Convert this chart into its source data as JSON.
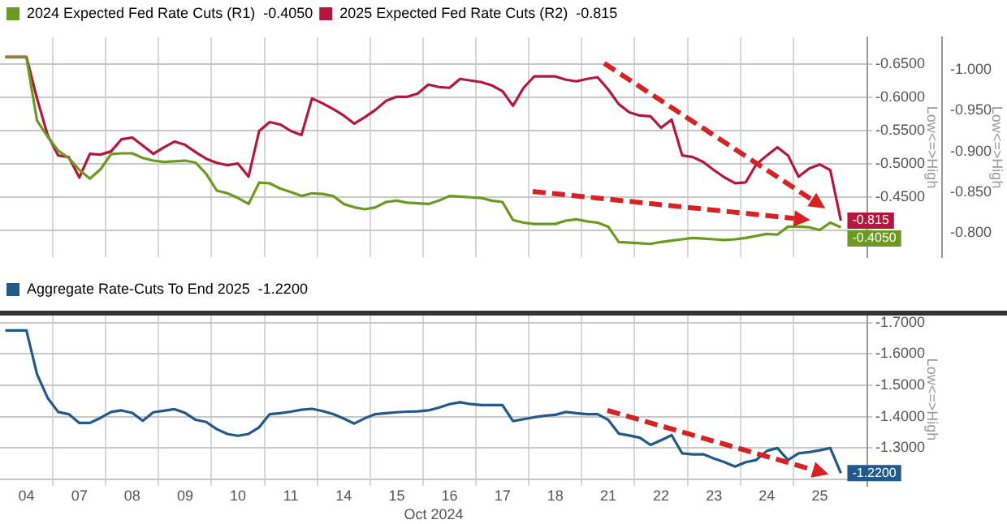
{
  "chart_data": [
    {
      "type": "line",
      "categories": [
        null,
        null,
        null,
        null,
        null,
        null,
        null,
        null,
        null,
        null,
        null,
        null,
        null,
        null,
        null,
        null,
        null,
        null,
        null,
        null,
        null,
        null,
        null,
        null,
        null,
        null,
        null,
        null,
        null,
        null,
        null,
        null,
        null,
        null,
        null,
        null,
        null,
        null,
        null,
        null,
        null,
        null,
        null,
        null,
        null,
        null,
        null,
        null,
        null,
        null,
        null,
        null,
        null,
        null,
        null,
        null,
        null,
        null,
        null,
        null,
        null,
        null,
        null,
        null,
        null,
        null,
        null,
        null,
        null,
        null,
        null,
        null,
        null,
        null,
        null,
        null,
        null,
        null,
        null,
        null,
        null,
        null
      ],
      "ylim": [
        -0.36,
        -0.69
      ],
      "yticks": [
        {
          "value": -0.65,
          "label": "-0.6500"
        },
        {
          "value": -0.6,
          "label": "-0.6000"
        },
        {
          "value": -0.55,
          "label": "-0.5500"
        },
        {
          "value": -0.5,
          "label": "-0.5000"
        },
        {
          "value": -0.45,
          "label": "-0.4500"
        },
        {
          "value": -0.4,
          "label": null
        }
      ],
      "y2lim": [
        -0.77,
        -1.04
      ],
      "y2ticks": [
        {
          "value": -1.0,
          "label": "-1.000"
        },
        {
          "value": -0.95,
          "label": "-0.950"
        },
        {
          "value": -0.9,
          "label": "-0.900"
        },
        {
          "value": -0.85,
          "label": "-0.850"
        },
        {
          "value": -0.8,
          "label": "-0.800"
        }
      ],
      "ylabel": "Low<=>High",
      "y2label": "Low<=>High",
      "legend": "top left",
      "grid": true,
      "tick_labels": "y",
      "marker": "none",
      "series": [
        {
          "name": "2024 Expected Fed Rate Cuts (R1)  -0.4050",
          "color": "#6a9a1f",
          "values": [
            -0.66,
            -0.66,
            -0.66,
            -0.565,
            -0.541,
            -0.52,
            -0.509,
            -0.491,
            -0.478,
            -0.492,
            -0.515,
            -0.516,
            -0.516,
            -0.509,
            -0.505,
            -0.503,
            -0.504,
            -0.505,
            -0.502,
            -0.485,
            -0.46,
            -0.456,
            -0.449,
            -0.44,
            -0.472,
            -0.471,
            -0.463,
            -0.458,
            -0.452,
            -0.456,
            -0.455,
            -0.452,
            -0.44,
            -0.435,
            -0.432,
            -0.435,
            -0.443,
            -0.445,
            -0.442,
            -0.441,
            -0.44,
            -0.445,
            -0.452,
            -0.451,
            -0.45,
            -0.449,
            -0.445,
            -0.443,
            -0.416,
            -0.412,
            -0.41,
            -0.41,
            -0.41,
            -0.415,
            -0.417,
            -0.414,
            -0.412,
            -0.406,
            -0.383,
            -0.382,
            -0.381,
            -0.38,
            -0.383,
            -0.385,
            -0.387,
            -0.389,
            -0.388,
            -0.387,
            -0.386,
            -0.387,
            -0.389,
            -0.392,
            -0.395,
            -0.394,
            -0.406,
            -0.406,
            -0.405,
            -0.401,
            -0.412,
            -0.405,
            null,
            null
          ],
          "value_labels": [
            null,
            null,
            null,
            null,
            null,
            null,
            null,
            null,
            null,
            null,
            null,
            null,
            null,
            null,
            null,
            null,
            null,
            null,
            null,
            null,
            null,
            null,
            null,
            null,
            null,
            null,
            null,
            null,
            null,
            null,
            null,
            null,
            null,
            null,
            null,
            null,
            null,
            null,
            null,
            null,
            null,
            null,
            null,
            null,
            null,
            null,
            null,
            null,
            null,
            null,
            null,
            null,
            null,
            null,
            null,
            null,
            null,
            null,
            null,
            null,
            null,
            null,
            null,
            null,
            null,
            null,
            null,
            null,
            null,
            null,
            null,
            null,
            null,
            null,
            null,
            null,
            null,
            null,
            null,
            "-0.4050",
            null,
            null
          ]
        },
        {
          "name": "2025 Expected Fed Rate Cuts (R2)  -0.815",
          "color": "#b3173c",
          "axis": "y2",
          "values": [
            -1.016,
            -1.016,
            -1.016,
            -0.965,
            -0.92,
            -0.895,
            -0.893,
            -0.868,
            -0.897,
            -0.896,
            -0.9,
            -0.915,
            -0.917,
            -0.907,
            -0.897,
            -0.905,
            -0.912,
            -0.908,
            -0.899,
            -0.891,
            -0.886,
            -0.883,
            -0.885,
            -0.869,
            -0.925,
            -0.936,
            -0.933,
            -0.925,
            -0.92,
            -0.965,
            -0.959,
            -0.952,
            -0.944,
            -0.934,
            -0.942,
            -0.951,
            -0.962,
            -0.967,
            -0.967,
            -0.971,
            -0.982,
            -0.979,
            -0.978,
            -0.989,
            -0.987,
            -0.985,
            -0.981,
            -0.974,
            -0.956,
            -0.978,
            -0.992,
            -0.992,
            -0.992,
            -0.988,
            -0.986,
            -0.989,
            -0.991,
            -0.976,
            -0.958,
            -0.948,
            -0.944,
            -0.943,
            -0.929,
            -0.939,
            -0.895,
            -0.893,
            -0.887,
            -0.877,
            -0.868,
            -0.861,
            -0.862,
            -0.884,
            -0.895,
            -0.905,
            -0.895,
            -0.869,
            -0.879,
            -0.884,
            -0.877,
            -0.815,
            null,
            null
          ],
          "value_labels": [
            null,
            null,
            null,
            null,
            null,
            null,
            null,
            null,
            null,
            null,
            null,
            null,
            null,
            null,
            null,
            null,
            null,
            null,
            null,
            null,
            null,
            null,
            null,
            null,
            null,
            null,
            null,
            null,
            null,
            null,
            null,
            null,
            null,
            null,
            null,
            null,
            null,
            null,
            null,
            null,
            null,
            null,
            null,
            null,
            null,
            null,
            null,
            null,
            null,
            null,
            null,
            null,
            null,
            null,
            null,
            null,
            null,
            null,
            null,
            null,
            null,
            null,
            null,
            null,
            null,
            null,
            null,
            null,
            null,
            null,
            null,
            null,
            null,
            null,
            null,
            null,
            null,
            null,
            null,
            "-0.815",
            null,
            null
          ]
        }
      ]
    },
    {
      "type": "line",
      "categories": [
        null,
        null,
        "04",
        null,
        null,
        null,
        null,
        "07",
        null,
        null,
        null,
        null,
        "08",
        null,
        null,
        null,
        null,
        "09",
        null,
        null,
        null,
        null,
        "10",
        null,
        null,
        null,
        null,
        "11",
        null,
        null,
        null,
        null,
        "14",
        null,
        null,
        null,
        null,
        "15",
        null,
        null,
        null,
        null,
        "16",
        null,
        null,
        null,
        null,
        "17",
        null,
        null,
        null,
        null,
        "18",
        null,
        null,
        null,
        null,
        "21",
        null,
        null,
        null,
        null,
        "22",
        null,
        null,
        null,
        null,
        "23",
        null,
        null,
        null,
        null,
        "24",
        null,
        null,
        null,
        null,
        "25",
        null,
        null,
        null,
        null
      ],
      "ylim": [
        -1.18,
        -1.73
      ],
      "yticks": [
        {
          "value": -1.7,
          "label": "-1.7000"
        },
        {
          "value": -1.6,
          "label": "-1.6000"
        },
        {
          "value": -1.5,
          "label": "-1.5000"
        },
        {
          "value": -1.4,
          "label": "-1.4000"
        },
        {
          "value": -1.3,
          "label": "-1.3000"
        },
        {
          "value": -1.2,
          "label": null
        }
      ],
      "xlabel": "Oct 2024",
      "ylabel": "Low<=>High",
      "legend": "top left",
      "grid": true,
      "marker": "none",
      "series": [
        {
          "name": "Aggregate Rate-Cuts To End 2025  -1.2200",
          "color": "#22598c",
          "values": [
            -1.675,
            -1.675,
            -1.675,
            -1.535,
            -1.46,
            -1.415,
            -1.408,
            -1.38,
            -1.38,
            -1.396,
            -1.415,
            -1.42,
            -1.412,
            -1.387,
            -1.414,
            -1.419,
            -1.424,
            -1.412,
            -1.39,
            -1.383,
            -1.36,
            -1.345,
            -1.339,
            -1.345,
            -1.366,
            -1.408,
            -1.411,
            -1.416,
            -1.422,
            -1.425,
            -1.418,
            -1.408,
            -1.394,
            -1.378,
            -1.395,
            -1.408,
            -1.411,
            -1.414,
            -1.416,
            -1.417,
            -1.42,
            -1.429,
            -1.44,
            -1.446,
            -1.44,
            -1.437,
            -1.437,
            -1.437,
            -1.386,
            -1.392,
            -1.398,
            -1.403,
            -1.406,
            -1.415,
            -1.411,
            -1.408,
            -1.408,
            -1.39,
            -1.346,
            -1.34,
            -1.333,
            -1.31,
            -1.325,
            -1.341,
            -1.283,
            -1.28,
            -1.28,
            -1.267,
            -1.255,
            -1.241,
            -1.255,
            -1.262,
            -1.291,
            -1.3,
            -1.262,
            -1.283,
            -1.287,
            -1.293,
            -1.3,
            -1.22,
            null,
            null
          ],
          "value_labels": [
            null,
            null,
            null,
            null,
            null,
            null,
            null,
            null,
            null,
            null,
            null,
            null,
            null,
            null,
            null,
            null,
            null,
            null,
            null,
            null,
            null,
            null,
            null,
            null,
            null,
            null,
            null,
            null,
            null,
            null,
            null,
            null,
            null,
            null,
            null,
            null,
            null,
            null,
            null,
            null,
            null,
            null,
            null,
            null,
            null,
            null,
            null,
            null,
            null,
            null,
            null,
            null,
            null,
            null,
            null,
            null,
            null,
            null,
            null,
            null,
            null,
            null,
            null,
            null,
            null,
            null,
            null,
            null,
            null,
            null,
            null,
            null,
            null,
            null,
            null,
            null,
            null,
            null,
            null,
            "-1.2200",
            null,
            null
          ]
        }
      ]
    }
  ]
}
